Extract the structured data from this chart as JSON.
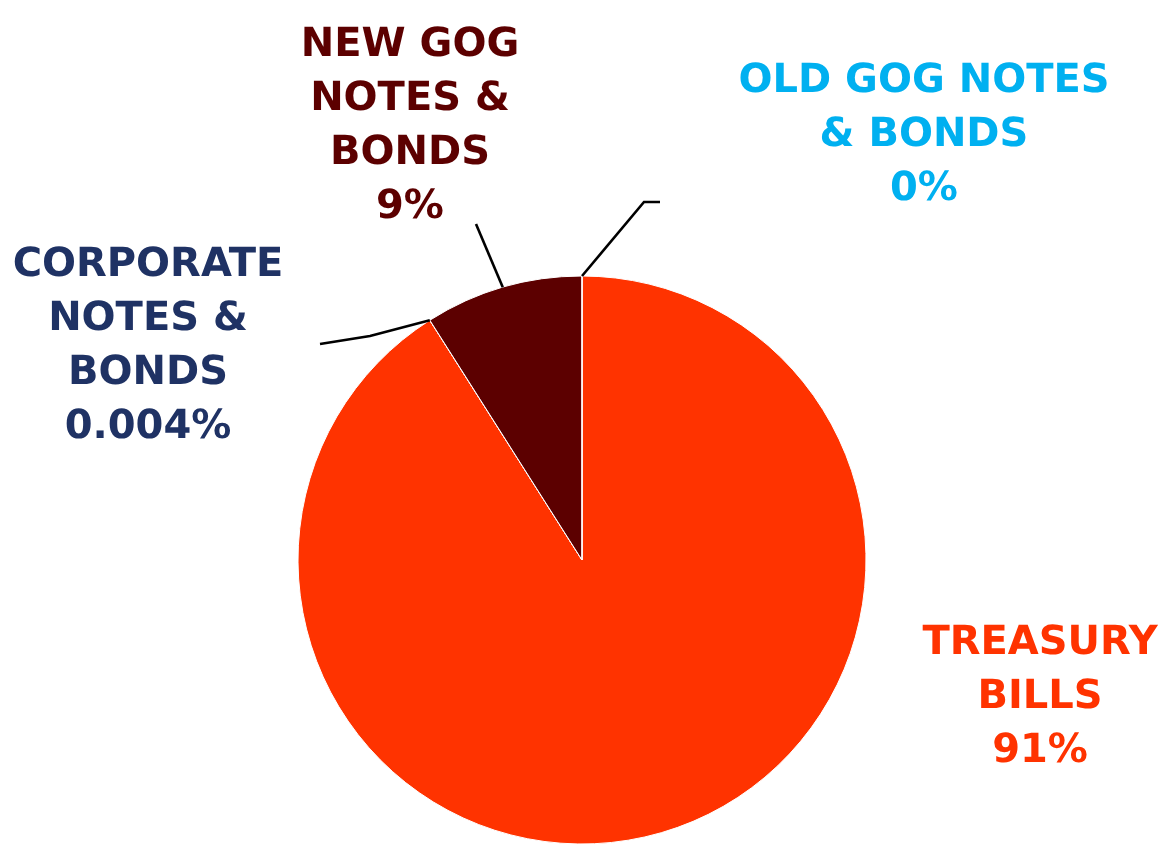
{
  "chart_data": {
    "type": "pie",
    "categories": [
      "TREASURY BILLS",
      "CORPORATE NOTES & BONDS",
      "NEW GOG NOTES & BONDS",
      "OLD GOG NOTES & BONDS"
    ],
    "values": [
      91,
      0.004,
      9,
      0
    ],
    "colors": [
      "#ff3300",
      "#1f3264",
      "#5c0000",
      "#00b0f0"
    ],
    "value_labels": [
      "91%",
      "0.004%",
      "9%",
      "0%"
    ]
  }
}
